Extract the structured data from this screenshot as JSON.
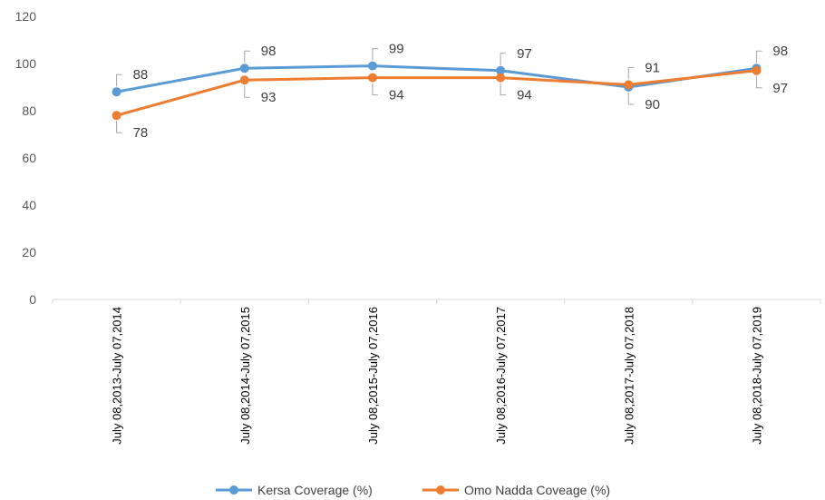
{
  "chart_data": {
    "type": "line",
    "categories": [
      "July 08,2013-July 07,2014",
      "July 08,2014-July 07,2015",
      "July 08,2015-July 07,2016",
      "July 08,2016-July 07,2017",
      "July 08,2017-July 07,2018",
      "July 08,2018-July 07,2019"
    ],
    "series": [
      {
        "name": "Kersa Coverage (%)",
        "color": "#5B9BD5",
        "values": [
          88,
          98,
          99,
          97,
          90,
          98
        ]
      },
      {
        "name": "Omo Nadda Coveage (%)",
        "color": "#ED7D31",
        "values": [
          78,
          93,
          94,
          94,
          91,
          97
        ]
      }
    ],
    "ylim": [
      0,
      120
    ],
    "yticks": [
      "0",
      "20",
      "40",
      "60",
      "80",
      "100",
      "120"
    ],
    "grid": false,
    "legend": "bottom",
    "title": "",
    "xlabel": "",
    "ylabel": ""
  }
}
